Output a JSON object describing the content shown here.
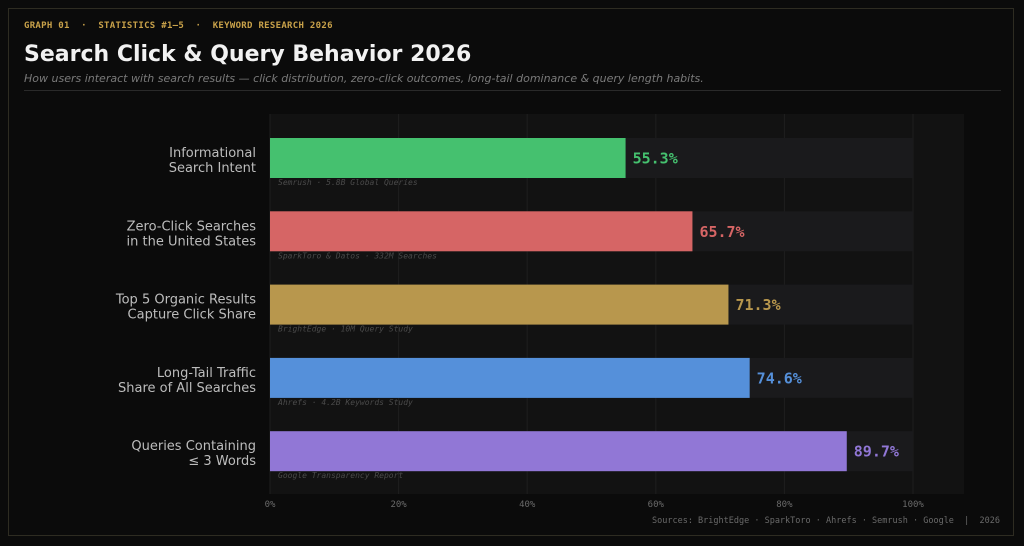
{
  "header": {
    "kicker": "GRAPH 01  ·  STATISTICS #1–5  ·  KEYWORD RESEARCH 2026",
    "title": "Search Click & Query Behavior 2026",
    "subtitle": "How users interact with search results — click distribution, zero-click outcomes, long-tail dominance & query length habits."
  },
  "footer": {
    "sources": "Sources: BrightEdge · SparkToro · Ahrefs · Semrush · Google  |  2026"
  },
  "chart_data": {
    "type": "bar",
    "orientation": "horizontal",
    "title": "Search Click & Query Behavior 2026",
    "xlim": [
      0,
      100
    ],
    "ticks": [
      "0%",
      "20%",
      "40%",
      "60%",
      "80%",
      "100%"
    ],
    "grid": true,
    "categories": [
      {
        "lines": [
          "Informational",
          "Search Intent"
        ],
        "value": 55.3,
        "label": "55.3%",
        "source": "Semrush · 5.8B Global Queries",
        "color": "#45c16f"
      },
      {
        "lines": [
          "Zero-Click Searches",
          "in the United States"
        ],
        "value": 65.7,
        "label": "65.7%",
        "source": "SparkToro & Datos · 332M Searches",
        "color": "#d66565"
      },
      {
        "lines": [
          "Top 5 Organic Results",
          "Capture Click Share"
        ],
        "value": 71.3,
        "label": "71.3%",
        "source": "BrightEdge · 10M Query Study",
        "color": "#b8974d"
      },
      {
        "lines": [
          "Long-Tail Traffic",
          "Share of All Searches"
        ],
        "value": 74.6,
        "label": "74.6%",
        "source": "Ahrefs · 4.2B Keywords Study",
        "color": "#5590da"
      },
      {
        "lines": [
          "Queries Containing",
          "≤ 3 Words"
        ],
        "value": 89.7,
        "label": "89.7%",
        "source": "Google Transparency Report",
        "color": "#9177d6"
      }
    ]
  },
  "colors": {
    "background": "#0b0b0b",
    "plot_bg": "#121212",
    "track": "#1a1a1c",
    "accent": "#c9a24a"
  }
}
